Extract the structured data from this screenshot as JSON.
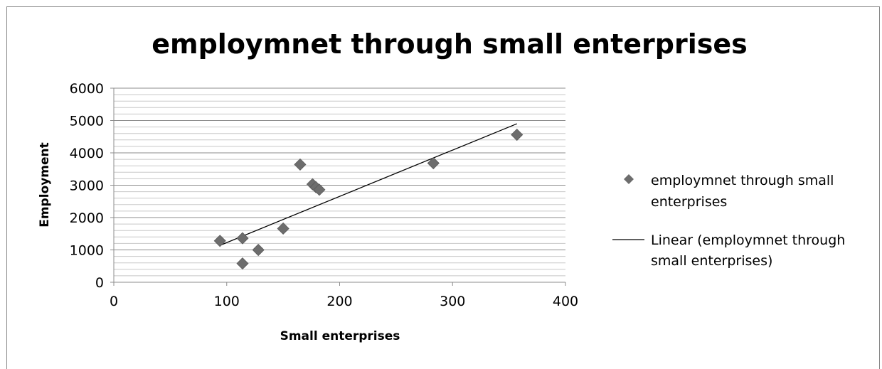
{
  "chart_data": {
    "type": "scatter",
    "title": "employmnet through small enterprises",
    "xlabel": "Small enterprises",
    "ylabel": "Employment",
    "xlim": [
      0,
      400
    ],
    "ylim": [
      0,
      6000
    ],
    "x_ticks": [
      "0",
      "100",
      "200",
      "300",
      "400"
    ],
    "y_ticks": [
      "0",
      "1000",
      "2000",
      "3000",
      "4000",
      "5000",
      "6000"
    ],
    "grid": "horizontal",
    "legend_position": "right",
    "series": [
      {
        "name": "employmnet through small enterprises",
        "marker": "diamond",
        "color": "#6d6d6d",
        "points": [
          {
            "x": 94,
            "y": 1280
          },
          {
            "x": 114,
            "y": 1360
          },
          {
            "x": 114,
            "y": 580
          },
          {
            "x": 128,
            "y": 1000
          },
          {
            "x": 150,
            "y": 1660
          },
          {
            "x": 165,
            "y": 3640
          },
          {
            "x": 176,
            "y": 3030
          },
          {
            "x": 179,
            "y": 2940
          },
          {
            "x": 182,
            "y": 2860
          },
          {
            "x": 283,
            "y": 3680
          },
          {
            "x": 357,
            "y": 4560
          }
        ]
      }
    ],
    "trendline": {
      "name": "Linear (employmnet through small enterprises)",
      "type": "linear",
      "color": "#000000",
      "from": {
        "x": 94,
        "y": 1140
      },
      "to": {
        "x": 357,
        "y": 4900
      }
    }
  }
}
